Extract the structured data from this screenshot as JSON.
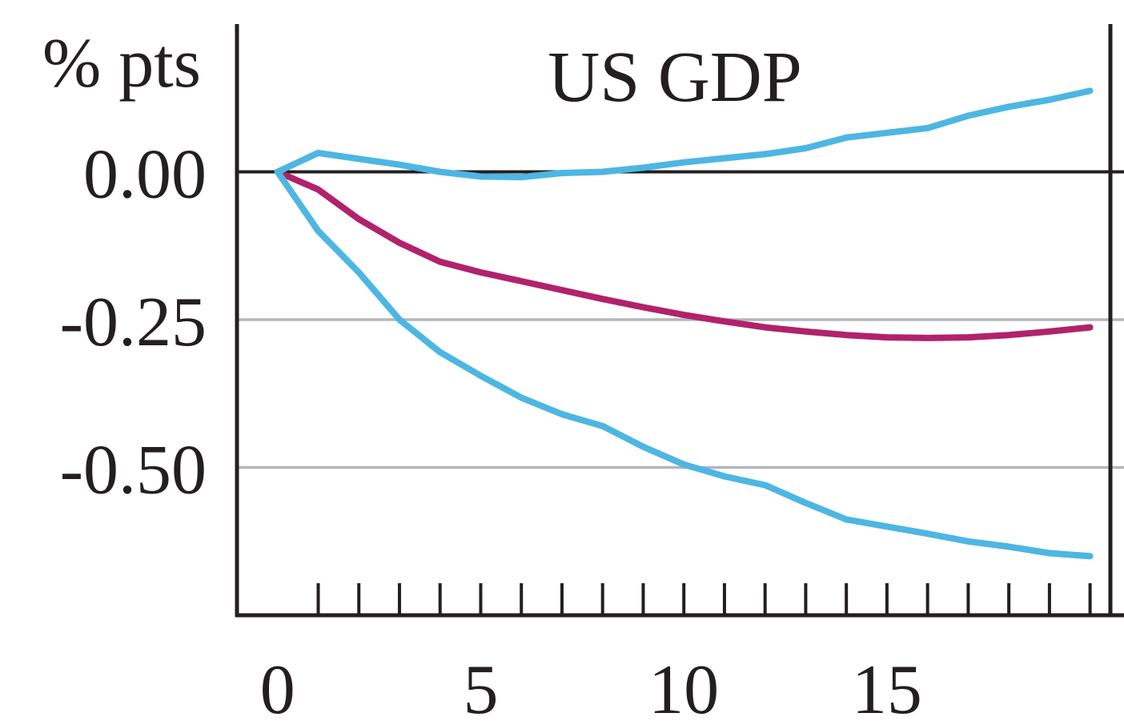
{
  "chart_data": {
    "type": "line",
    "title": "US GDP",
    "ylabel": "% pts",
    "xlabel": "",
    "xlim": [
      -1,
      20.5
    ],
    "ylim": [
      -0.75,
      0.25
    ],
    "x_ticks": [
      0,
      5,
      10,
      15
    ],
    "x_tick_labels": [
      "0",
      "5",
      "10",
      "15"
    ],
    "y_ticks": [
      0.0,
      -0.25,
      -0.5
    ],
    "y_tick_labels": [
      "0.00",
      "-0.25",
      "-0.50"
    ],
    "grid": true,
    "legend": "none",
    "x": [
      0,
      1,
      2,
      3,
      4,
      5,
      6,
      7,
      8,
      9,
      10,
      11,
      12,
      13,
      14,
      15,
      16,
      17,
      18,
      19,
      20
    ],
    "series": [
      {
        "color": "#b1226c",
        "values": [
          0.0,
          -0.03,
          -0.08,
          -0.12,
          -0.152,
          -0.17,
          -0.185,
          -0.2,
          -0.215,
          -0.229,
          -0.242,
          -0.253,
          -0.263,
          -0.27,
          -0.276,
          -0.28,
          -0.281,
          -0.28,
          -0.276,
          -0.27,
          -0.263
        ]
      },
      {
        "color": "#4db6e2",
        "values": [
          0.0,
          0.032,
          0.022,
          0.012,
          0.0,
          -0.008,
          -0.009,
          -0.002,
          0.0,
          0.007,
          0.016,
          0.023,
          0.03,
          0.04,
          0.058,
          0.066,
          0.074,
          0.095,
          0.11,
          0.122,
          0.137
        ]
      },
      {
        "color": "#4db6e2",
        "values": [
          0.0,
          -0.1,
          -0.17,
          -0.25,
          -0.305,
          -0.345,
          -0.382,
          -0.41,
          -0.43,
          -0.465,
          -0.495,
          -0.515,
          -0.53,
          -0.56,
          -0.588,
          -0.6,
          -0.612,
          -0.625,
          -0.634,
          -0.645,
          -0.65
        ]
      }
    ],
    "zero_line_color": "#231f20",
    "grid_color": "#b3b6bb",
    "frame_color": "#231f20"
  }
}
